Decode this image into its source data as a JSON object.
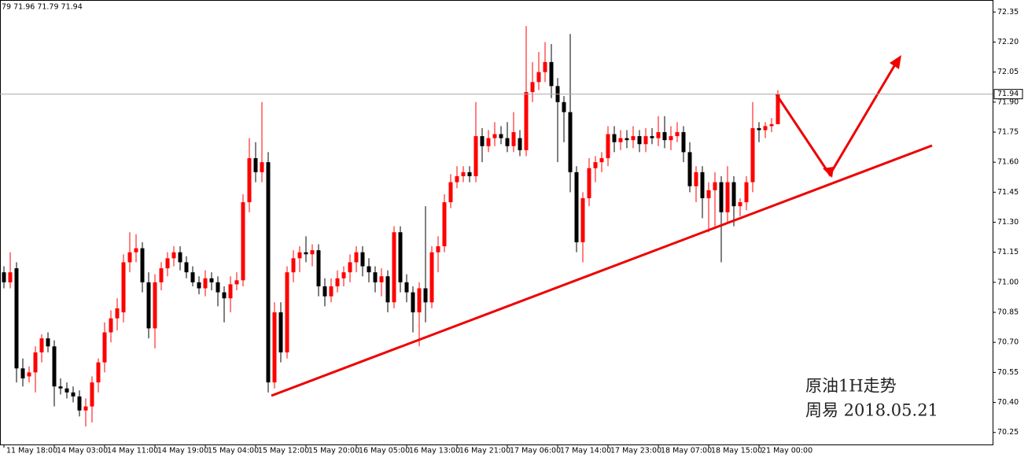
{
  "chart_data": {
    "type": "candlestick",
    "header": "79 71.96 71.79 71.94",
    "categories": [
      "11 May 18:00",
      null,
      null,
      null,
      null,
      null,
      null,
      null,
      "14 May 03:00",
      null,
      null,
      null,
      null,
      null,
      null,
      null,
      "14 May 11:00",
      null,
      null,
      null,
      null,
      null,
      null,
      null,
      "14 May 19:00",
      null,
      null,
      null,
      null,
      null,
      null,
      null,
      "15 May 04:00",
      null,
      null,
      null,
      null,
      null,
      null,
      null,
      "15 May 12:00",
      null,
      null,
      null,
      null,
      null,
      null,
      null,
      "15 May 20:00",
      null,
      null,
      null,
      null,
      null,
      null,
      null,
      "16 May 05:00",
      null,
      null,
      null,
      null,
      null,
      null,
      null,
      "16 May 13:00",
      null,
      null,
      null,
      null,
      null,
      null,
      null,
      "16 May 21:00",
      null,
      null,
      null,
      null,
      null,
      null,
      null,
      "17 May 06:00",
      null,
      null,
      null,
      null,
      null,
      null,
      null,
      "17 May 14:00",
      null,
      null,
      null,
      null,
      null,
      null,
      null,
      "17 May 23:00",
      null,
      null,
      null,
      null,
      null,
      null,
      null,
      "18 May 07:00",
      null,
      null,
      null,
      null,
      null,
      null,
      null,
      "18 May 15:00",
      null,
      null,
      null,
      null,
      null,
      null,
      null,
      "21 May 00:00",
      null,
      null,
      null
    ],
    "candles": [
      [
        71.05,
        71.08,
        70.97,
        71.0
      ],
      [
        71.0,
        71.15,
        70.97,
        71.05
      ],
      [
        71.07,
        71.1,
        70.5,
        70.57
      ],
      [
        70.57,
        70.62,
        70.48,
        70.52
      ],
      [
        70.53,
        70.58,
        70.5,
        70.55
      ],
      [
        70.55,
        70.68,
        70.45,
        70.65
      ],
      [
        70.65,
        70.74,
        70.6,
        70.72
      ],
      [
        70.72,
        70.75,
        70.65,
        70.68
      ],
      [
        70.68,
        70.71,
        70.38,
        70.48
      ],
      [
        70.48,
        70.52,
        70.44,
        70.47
      ],
      [
        70.47,
        70.5,
        70.42,
        70.45
      ],
      [
        70.45,
        70.48,
        70.4,
        70.43
      ],
      [
        70.43,
        70.46,
        70.33,
        70.36
      ],
      [
        70.36,
        70.42,
        70.28,
        70.38
      ],
      [
        70.38,
        70.53,
        70.3,
        70.5
      ],
      [
        70.5,
        70.62,
        70.45,
        70.6
      ],
      [
        70.6,
        70.8,
        70.55,
        70.75
      ],
      [
        70.75,
        70.86,
        70.7,
        70.82
      ],
      [
        70.82,
        70.92,
        70.76,
        70.87
      ],
      [
        70.85,
        71.14,
        70.8,
        71.1
      ],
      [
        71.1,
        71.25,
        71.05,
        71.15
      ],
      [
        71.15,
        71.24,
        71.1,
        71.17
      ],
      [
        71.17,
        71.2,
        70.95,
        71.0
      ],
      [
        71.0,
        71.05,
        70.72,
        70.77
      ],
      [
        70.77,
        71.04,
        70.67,
        71.0
      ],
      [
        71.0,
        71.1,
        70.96,
        71.07
      ],
      [
        71.07,
        71.15,
        71.03,
        71.12
      ],
      [
        71.12,
        71.18,
        71.08,
        71.15
      ],
      [
        71.15,
        71.18,
        71.06,
        71.1
      ],
      [
        71.1,
        71.13,
        71.02,
        71.05
      ],
      [
        71.05,
        71.08,
        70.98,
        71.0
      ],
      [
        71.0,
        71.03,
        70.94,
        70.97
      ],
      [
        70.97,
        71.06,
        70.93,
        71.02
      ],
      [
        71.02,
        71.05,
        70.96,
        71.0
      ],
      [
        71.0,
        71.03,
        70.88,
        70.95
      ],
      [
        70.95,
        70.98,
        70.8,
        70.92
      ],
      [
        70.92,
        71.03,
        70.85,
        70.99
      ],
      [
        70.99,
        71.05,
        70.96,
        71.01
      ],
      [
        71.01,
        71.44,
        70.98,
        71.4
      ],
      [
        71.4,
        71.72,
        71.35,
        71.62
      ],
      [
        71.62,
        71.7,
        71.5,
        71.55
      ],
      [
        71.55,
        71.9,
        71.5,
        71.6
      ],
      [
        71.6,
        71.65,
        70.45,
        70.5
      ],
      [
        70.5,
        70.9,
        70.47,
        70.85
      ],
      [
        70.85,
        70.9,
        70.6,
        70.65
      ],
      [
        70.65,
        71.08,
        70.62,
        71.05
      ],
      [
        71.05,
        71.16,
        71.0,
        71.12
      ],
      [
        71.12,
        71.18,
        71.05,
        71.15
      ],
      [
        71.15,
        71.23,
        71.1,
        71.14
      ],
      [
        71.14,
        71.19,
        71.08,
        71.16
      ],
      [
        71.16,
        71.19,
        70.93,
        70.98
      ],
      [
        70.98,
        71.02,
        70.88,
        70.93
      ],
      [
        70.93,
        71.02,
        70.9,
        70.98
      ],
      [
        70.98,
        71.06,
        70.95,
        71.02
      ],
      [
        71.02,
        71.08,
        70.98,
        71.05
      ],
      [
        71.05,
        71.14,
        71.0,
        71.1
      ],
      [
        71.1,
        71.18,
        71.05,
        71.15
      ],
      [
        71.15,
        71.18,
        71.03,
        71.08
      ],
      [
        71.08,
        71.12,
        71.0,
        71.05
      ],
      [
        71.05,
        71.08,
        70.95,
        71.0
      ],
      [
        71.0,
        71.07,
        70.93,
        71.03
      ],
      [
        71.03,
        71.06,
        70.85,
        70.9
      ],
      [
        70.9,
        71.28,
        70.87,
        71.25
      ],
      [
        71.25,
        71.28,
        70.95,
        71.0
      ],
      [
        71.0,
        71.04,
        70.9,
        70.95
      ],
      [
        70.95,
        70.98,
        70.75,
        70.85
      ],
      [
        70.85,
        71.0,
        70.68,
        70.97
      ],
      [
        70.97,
        71.38,
        70.8,
        70.9
      ],
      [
        70.9,
        71.18,
        70.87,
        71.15
      ],
      [
        71.15,
        71.23,
        71.05,
        71.18
      ],
      [
        71.18,
        71.44,
        71.15,
        71.4
      ],
      [
        71.4,
        71.54,
        71.37,
        71.5
      ],
      [
        71.5,
        71.58,
        71.47,
        71.53
      ],
      [
        71.53,
        71.58,
        71.5,
        71.55
      ],
      [
        71.55,
        71.58,
        71.5,
        71.53
      ],
      [
        71.53,
        71.9,
        71.5,
        71.73
      ],
      [
        71.73,
        71.77,
        71.6,
        71.68
      ],
      [
        71.68,
        71.76,
        71.65,
        71.72
      ],
      [
        71.72,
        71.8,
        71.68,
        71.74
      ],
      [
        71.74,
        71.78,
        71.69,
        71.72
      ],
      [
        71.72,
        71.8,
        71.65,
        71.68
      ],
      [
        71.68,
        71.85,
        71.65,
        71.75
      ],
      [
        71.72,
        71.76,
        71.63,
        71.66
      ],
      [
        71.66,
        72.28,
        71.63,
        71.95
      ],
      [
        71.95,
        72.1,
        71.9,
        72.0
      ],
      [
        72.0,
        72.15,
        71.96,
        72.05
      ],
      [
        72.05,
        72.2,
        72.0,
        72.1
      ],
      [
        72.1,
        72.19,
        71.92,
        71.98
      ],
      [
        71.98,
        72.02,
        71.6,
        71.9
      ],
      [
        71.9,
        71.93,
        71.7,
        71.85
      ],
      [
        71.85,
        72.24,
        71.45,
        71.55
      ],
      [
        71.55,
        71.58,
        71.15,
        71.2
      ],
      [
        71.2,
        71.45,
        71.1,
        71.42
      ],
      [
        71.42,
        71.62,
        71.38,
        71.57
      ],
      [
        71.57,
        71.63,
        71.5,
        71.6
      ],
      [
        71.6,
        71.65,
        71.55,
        71.62
      ],
      [
        71.62,
        71.78,
        71.58,
        71.74
      ],
      [
        71.74,
        71.78,
        71.65,
        71.7
      ],
      [
        71.7,
        71.76,
        71.66,
        71.72
      ],
      [
        71.72,
        71.76,
        71.67,
        71.71
      ],
      [
        71.71,
        71.78,
        71.67,
        71.73
      ],
      [
        71.73,
        71.76,
        71.65,
        71.69
      ],
      [
        71.69,
        71.77,
        71.65,
        71.73
      ],
      [
        71.73,
        71.77,
        71.69,
        71.72
      ],
      [
        71.72,
        71.83,
        71.68,
        71.75
      ],
      [
        71.75,
        71.83,
        71.67,
        71.71
      ],
      [
        71.71,
        71.78,
        71.66,
        71.73
      ],
      [
        71.73,
        71.8,
        71.7,
        71.75
      ],
      [
        71.75,
        71.78,
        71.6,
        71.65
      ],
      [
        71.65,
        71.7,
        71.45,
        71.48
      ],
      [
        71.48,
        71.58,
        71.4,
        71.55
      ],
      [
        71.55,
        71.58,
        71.32,
        71.42
      ],
      [
        71.42,
        71.5,
        71.25,
        71.46
      ],
      [
        71.46,
        71.55,
        71.28,
        71.5
      ],
      [
        71.5,
        71.53,
        71.1,
        71.35
      ],
      [
        71.35,
        71.58,
        71.3,
        71.5
      ],
      [
        71.5,
        71.53,
        71.28,
        71.38
      ],
      [
        71.38,
        71.42,
        71.33,
        71.4
      ],
      [
        71.4,
        71.53,
        71.36,
        71.5
      ],
      [
        71.5,
        71.9,
        71.45,
        71.77
      ],
      [
        71.77,
        71.8,
        71.7,
        71.76
      ],
      [
        71.76,
        71.8,
        71.72,
        71.78
      ],
      [
        71.78,
        71.82,
        71.75,
        71.79
      ],
      [
        71.79,
        71.96,
        71.79,
        71.94
      ]
    ],
    "up_color": "#ff0000",
    "down_color": "#000000",
    "ylim": [
      70.19,
      72.41
    ],
    "yticks": [
      72.35,
      {
        "value": 72.2,
        "label": "72.20"
      },
      72.05,
      {
        "value": 71.9,
        "label": "71.90"
      },
      71.75,
      {
        "value": 71.6,
        "label": "71.60"
      },
      71.45,
      {
        "value": 71.3,
        "label": "71.30"
      },
      71.15,
      {
        "value": 71.0,
        "label": "71.00"
      },
      70.85,
      {
        "value": 70.7,
        "label": "70.70"
      },
      70.55,
      {
        "value": 70.4,
        "label": "70.40"
      },
      70.25
    ],
    "last_price": 71.94,
    "annotations": [
      "原油1H走势",
      "周易 2018.05.21"
    ]
  }
}
